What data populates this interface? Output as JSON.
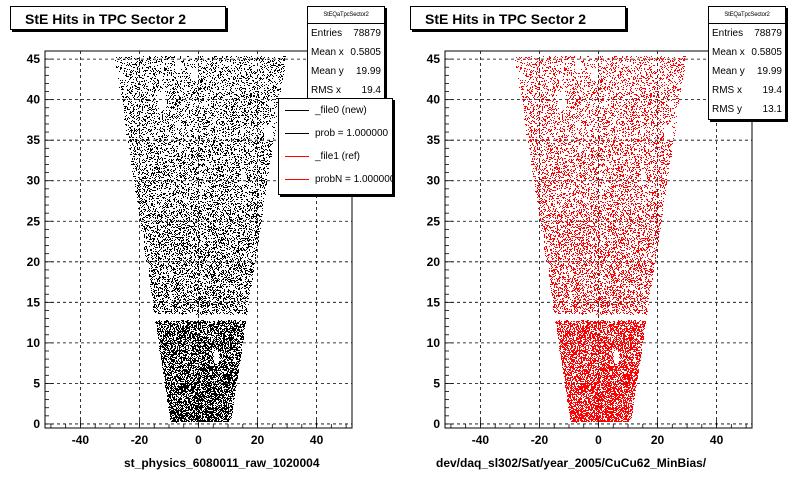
{
  "chart_data": [
    {
      "type": "scatter",
      "title": "StE Hits in TPC Sector 2",
      "xlabel": "st_physics_6080011_raw_1020004",
      "ylabel": "",
      "xlim": [
        -52,
        52
      ],
      "ylim": [
        -0.5,
        46
      ],
      "xticks": [
        "-40",
        "-20",
        "0",
        "20",
        "40"
      ],
      "yticks": [
        "0",
        "5",
        "10",
        "15",
        "20",
        "25",
        "30",
        "35",
        "40",
        "45"
      ],
      "grid": true,
      "marker_color": "#000000",
      "stats": {
        "title": "StEQaTpcSector2",
        "rows": [
          {
            "label": "Entries",
            "value": "78879"
          },
          {
            "label": "Mean x",
            "value": "0.5805"
          },
          {
            "label": "Mean y",
            "value": "19.99"
          },
          {
            "label": "RMS x",
            "value": "19.4"
          }
        ]
      },
      "legend": {
        "placement": "top-right",
        "entries": [
          {
            "label": "_file0 (new)",
            "color": "#000000"
          },
          {
            "label": "prob = 1.000000",
            "color": "#000000"
          },
          {
            "label": "_file1 (ref)",
            "color": "#ff0000"
          },
          {
            "label": "probN = 1.000000",
            "color": "#ff0000"
          }
        ]
      }
    },
    {
      "type": "scatter",
      "title": "StE Hits in TPC Sector 2",
      "xlabel": "dev/daq_sl302/Sat/year_2005/CuCu62_MinBias/",
      "ylabel": "",
      "xlim": [
        -52,
        52
      ],
      "ylim": [
        -0.5,
        46
      ],
      "xticks": [
        "-40",
        "-20",
        "0",
        "20",
        "40"
      ],
      "yticks": [
        "0",
        "5",
        "10",
        "15",
        "20",
        "25",
        "30",
        "35",
        "40",
        "45"
      ],
      "grid": true,
      "marker_color": "#ff0000",
      "stats": {
        "title": "StEQaTpcSector2",
        "rows": [
          {
            "label": "Entries",
            "value": "78879"
          },
          {
            "label": "Mean x",
            "value": "0.5805"
          },
          {
            "label": "Mean y",
            "value": "19.99"
          },
          {
            "label": "RMS x",
            "value": "19.4"
          },
          {
            "label": "RMS y",
            "value": "13.1"
          }
        ]
      }
    }
  ]
}
